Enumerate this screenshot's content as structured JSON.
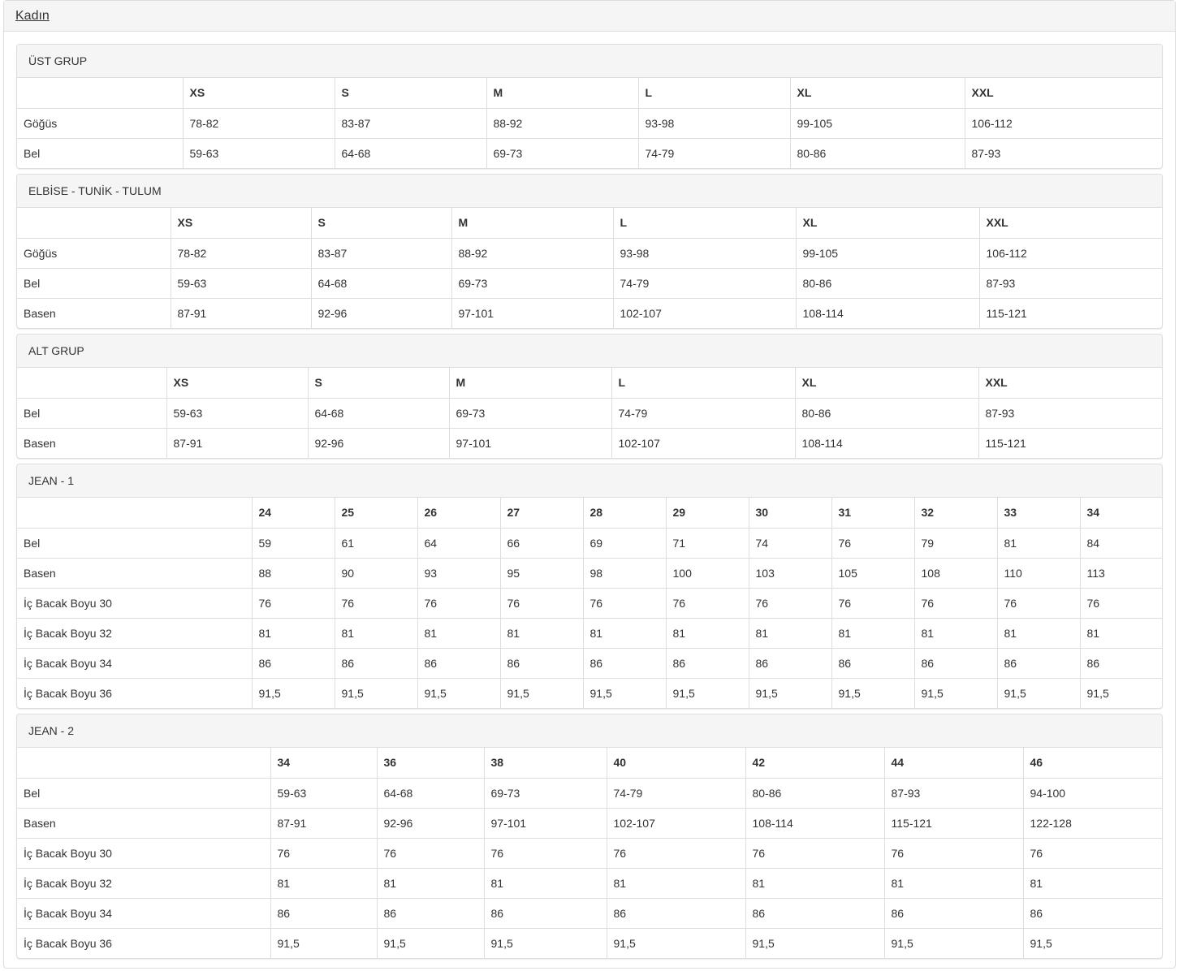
{
  "title": "Kadın",
  "sections": [
    {
      "title": "ÜST GRUP",
      "headers": [
        "XS",
        "S",
        "M",
        "L",
        "XL",
        "XXL"
      ],
      "rows": [
        {
          "label": "Göğüs",
          "values": [
            "78-82",
            "83-87",
            "88-92",
            "93-98",
            "99-105",
            "106-112"
          ]
        },
        {
          "label": "Bel",
          "values": [
            "59-63",
            "64-68",
            "69-73",
            "74-79",
            "80-86",
            "87-93"
          ]
        }
      ]
    },
    {
      "title": "ELBİSE - TUNİK - TULUM",
      "headers": [
        "XS",
        "S",
        "M",
        "L",
        "XL",
        "XXL"
      ],
      "rows": [
        {
          "label": "Göğüs",
          "values": [
            "78-82",
            "83-87",
            "88-92",
            "93-98",
            "99-105",
            "106-112"
          ]
        },
        {
          "label": "Bel",
          "values": [
            "59-63",
            "64-68",
            "69-73",
            "74-79",
            "80-86",
            "87-93"
          ]
        },
        {
          "label": "Basen",
          "values": [
            "87-91",
            "92-96",
            "97-101",
            "102-107",
            "108-114",
            "115-121"
          ]
        }
      ]
    },
    {
      "title": "ALT GRUP",
      "headers": [
        "XS",
        "S",
        "M",
        "L",
        "XL",
        "XXL"
      ],
      "rows": [
        {
          "label": "Bel",
          "values": [
            "59-63",
            "64-68",
            "69-73",
            "74-79",
            "80-86",
            "87-93"
          ]
        },
        {
          "label": "Basen",
          "values": [
            "87-91",
            "92-96",
            "97-101",
            "102-107",
            "108-114",
            "115-121"
          ]
        }
      ]
    },
    {
      "title": "JEAN - 1",
      "headers": [
        "24",
        "25",
        "26",
        "27",
        "28",
        "29",
        "30",
        "31",
        "32",
        "33",
        "34"
      ],
      "rows": [
        {
          "label": "Bel",
          "values": [
            "59",
            "61",
            "64",
            "66",
            "69",
            "71",
            "74",
            "76",
            "79",
            "81",
            "84"
          ]
        },
        {
          "label": "Basen",
          "values": [
            "88",
            "90",
            "93",
            "95",
            "98",
            "100",
            "103",
            "105",
            "108",
            "110",
            "113"
          ]
        },
        {
          "label": "İç Bacak Boyu 30",
          "values": [
            "76",
            "76",
            "76",
            "76",
            "76",
            "76",
            "76",
            "76",
            "76",
            "76",
            "76"
          ]
        },
        {
          "label": "İç Bacak Boyu 32",
          "values": [
            "81",
            "81",
            "81",
            "81",
            "81",
            "81",
            "81",
            "81",
            "81",
            "81",
            "81"
          ]
        },
        {
          "label": "İç Bacak Boyu 34",
          "values": [
            "86",
            "86",
            "86",
            "86",
            "86",
            "86",
            "86",
            "86",
            "86",
            "86",
            "86"
          ]
        },
        {
          "label": "İç Bacak Boyu 36",
          "values": [
            "91,5",
            "91,5",
            "91,5",
            "91,5",
            "91,5",
            "91,5",
            "91,5",
            "91,5",
            "91,5",
            "91,5",
            "91,5"
          ]
        }
      ]
    },
    {
      "title": "JEAN - 2",
      "headers": [
        "34",
        "36",
        "38",
        "40",
        "42",
        "44",
        "46"
      ],
      "rows": [
        {
          "label": "Bel",
          "values": [
            "59-63",
            "64-68",
            "69-73",
            "74-79",
            "80-86",
            "87-93",
            "94-100"
          ]
        },
        {
          "label": "Basen",
          "values": [
            "87-91",
            "92-96",
            "97-101",
            "102-107",
            "108-114",
            "115-121",
            "122-128"
          ]
        },
        {
          "label": "İç Bacak Boyu 30",
          "values": [
            "76",
            "76",
            "76",
            "76",
            "76",
            "76",
            "76"
          ]
        },
        {
          "label": "İç Bacak Boyu 32",
          "values": [
            "81",
            "81",
            "81",
            "81",
            "81",
            "81",
            "81"
          ]
        },
        {
          "label": "İç Bacak Boyu 34",
          "values": [
            "86",
            "86",
            "86",
            "86",
            "86",
            "86",
            "86"
          ]
        },
        {
          "label": "İç Bacak Boyu 36",
          "values": [
            "91,5",
            "91,5",
            "91,5",
            "91,5",
            "91,5",
            "91,5",
            "91,5"
          ]
        }
      ]
    }
  ]
}
